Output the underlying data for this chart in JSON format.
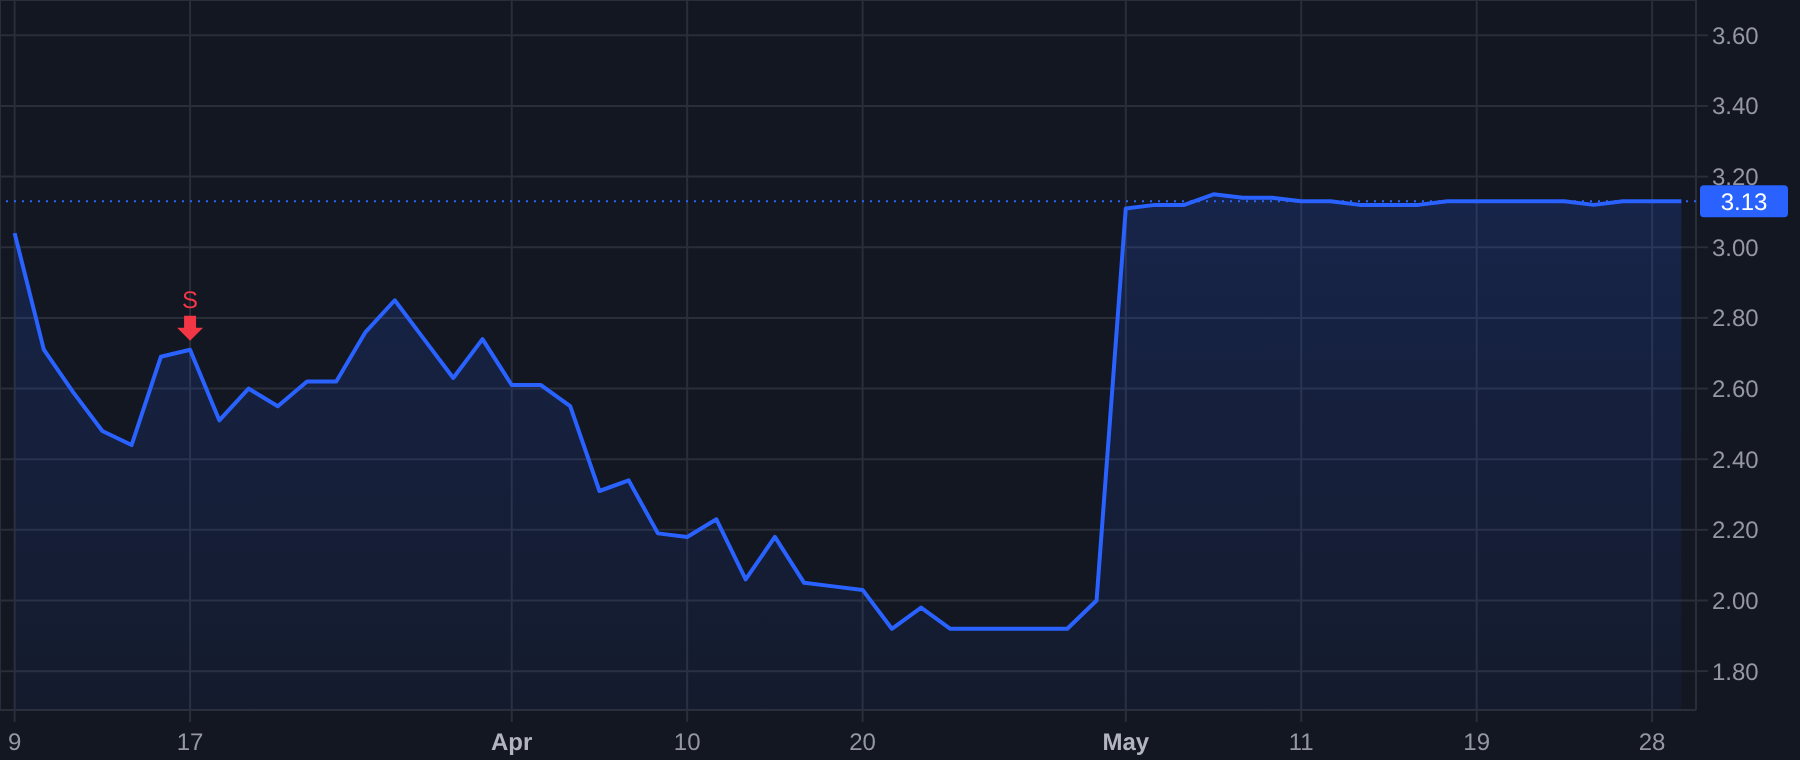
{
  "chart_data": {
    "type": "area",
    "categories": [
      "9",
      null,
      null,
      null,
      null,
      null,
      "17",
      null,
      null,
      null,
      null,
      null,
      null,
      null,
      null,
      null,
      null,
      "Apr",
      null,
      null,
      null,
      null,
      null,
      "10",
      null,
      null,
      null,
      null,
      null,
      "20",
      null,
      null,
      null,
      null,
      null,
      null,
      null,
      null,
      "May",
      null,
      null,
      null,
      null,
      null,
      "11",
      null,
      null,
      null,
      null,
      null,
      "19",
      null,
      null,
      null,
      null,
      null,
      "28",
      null
    ],
    "series": [
      {
        "color": "#2962ff",
        "values": [
          3.04,
          2.71,
          2.59,
          2.48,
          2.44,
          2.69,
          2.71,
          2.51,
          2.6,
          2.55,
          2.62,
          2.62,
          2.76,
          2.85,
          2.74,
          2.63,
          2.74,
          2.61,
          2.61,
          2.55,
          2.31,
          2.34,
          2.19,
          2.18,
          2.23,
          2.06,
          2.18,
          2.05,
          2.04,
          2.03,
          1.92,
          1.98,
          1.92,
          1.92,
          1.92,
          1.92,
          1.92,
          2.0,
          3.11,
          3.12,
          3.12,
          3.15,
          3.14,
          3.14,
          3.13,
          3.13,
          3.12,
          3.12,
          3.12,
          3.13,
          3.13,
          3.13,
          3.13,
          3.13,
          3.12,
          3.13,
          3.13,
          3.13
        ]
      }
    ],
    "ylim": [
      1.69,
      3.7
    ],
    "yticks": [
      {
        "value": 1.8,
        "label": "1.80"
      },
      {
        "value": 2.0,
        "label": "2.00"
      },
      {
        "value": 2.2,
        "label": "2.20"
      },
      {
        "value": 2.4,
        "label": "2.40"
      },
      {
        "value": 2.6,
        "label": "2.60"
      },
      {
        "value": 2.8,
        "label": "2.80"
      },
      {
        "value": 3.0,
        "label": "3.00"
      },
      {
        "value": 3.2,
        "label": "3.20"
      },
      {
        "value": 3.4,
        "label": "3.40"
      },
      {
        "value": 3.6,
        "label": "3.60"
      }
    ],
    "grid": true,
    "ref_lines": [
      {
        "axis": "y",
        "value": 3.13,
        "label": "3.13",
        "color": "#2962ff",
        "line_style": "dotted"
      }
    ],
    "annotations": [
      {
        "text": "S",
        "x": "17",
        "y": 2.71
      }
    ]
  }
}
